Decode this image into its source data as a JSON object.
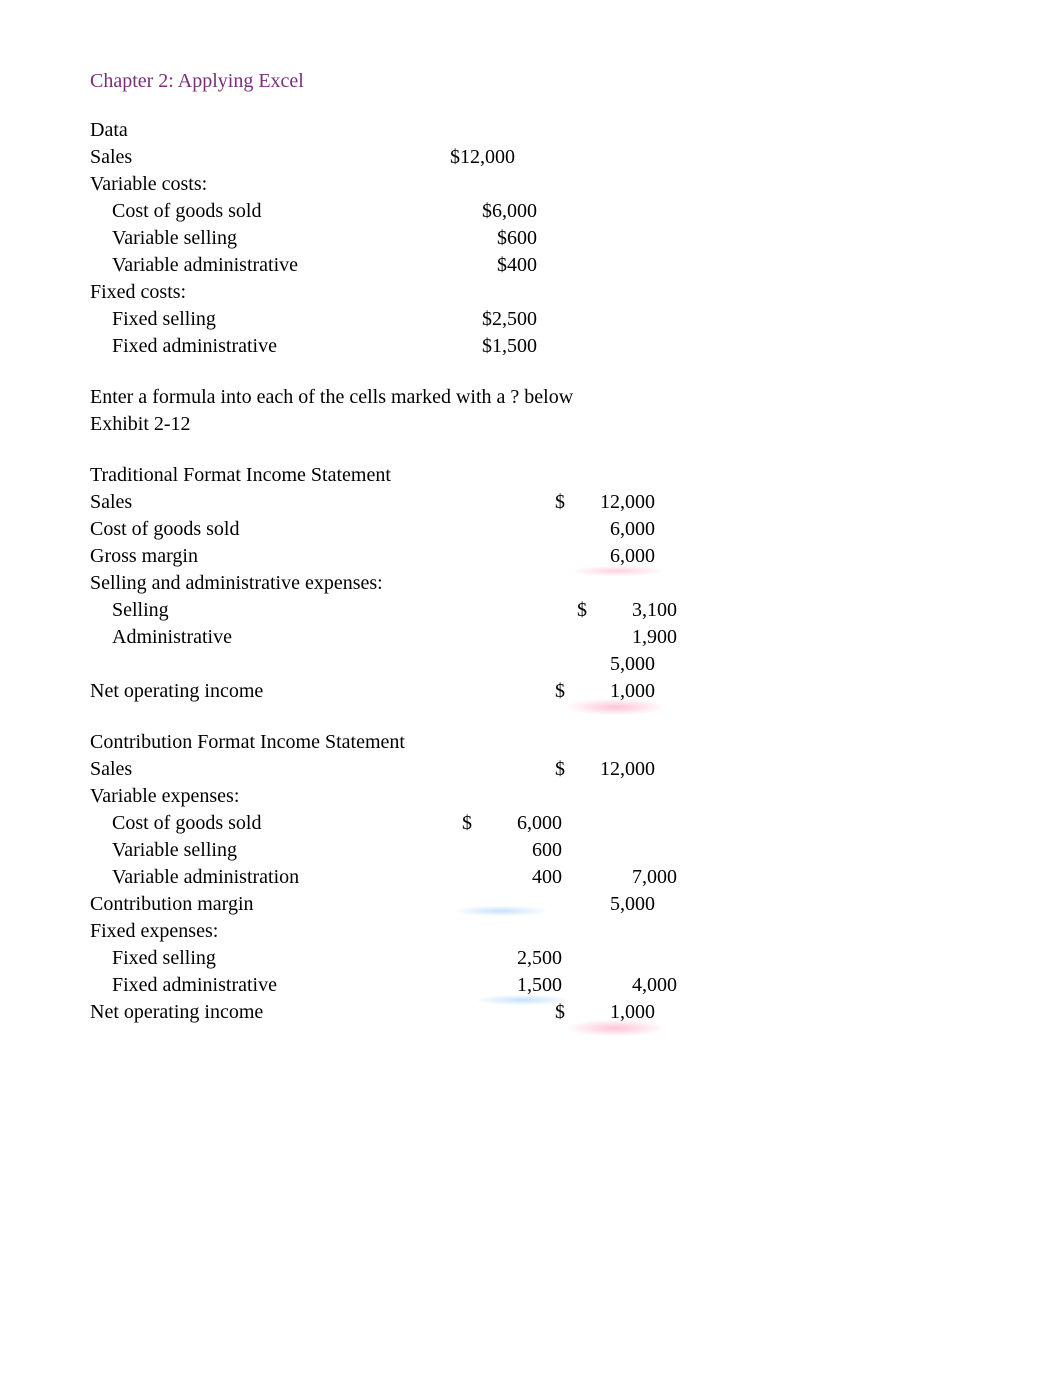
{
  "title": "Chapter 2: Applying Excel",
  "colors": {
    "title": "#7b2d7b",
    "text": "#000000",
    "background": "#ffffff",
    "blur_pink": "#ffaac8",
    "blur_blue": "#96c8ff"
  },
  "typography": {
    "family": "Times New Roman",
    "body_size_pt": 15,
    "title_size_pt": 15
  },
  "data_section": {
    "header": "Data",
    "rows": [
      {
        "label": "Sales",
        "value": "$12,000",
        "indent": 0
      },
      {
        "label": "Variable costs:",
        "value": "",
        "indent": 0
      },
      {
        "label": "Cost of goods sold",
        "value": "$6,000",
        "indent": 1
      },
      {
        "label": "Variable selling",
        "value": "$600",
        "indent": 1
      },
      {
        "label": "Variable administrative",
        "value": "$400",
        "indent": 1
      },
      {
        "label": "Fixed costs:",
        "value": "",
        "indent": 0
      },
      {
        "label": "Fixed selling",
        "value": "$2,500",
        "indent": 1
      },
      {
        "label": "Fixed administrative",
        "value": "$1,500",
        "indent": 1
      }
    ]
  },
  "instruction": {
    "line1": "Enter a formula into each of the cells marked with a ? below",
    "line2": "Exhibit 2-12"
  },
  "traditional": {
    "header": "Traditional Format Income Statement",
    "rows": [
      {
        "label": "Sales",
        "sym_b": "$",
        "val_b": "12,000"
      },
      {
        "label": "Cost of goods sold",
        "val_b": "6,000"
      },
      {
        "label": "Gross margin",
        "val_b": "6,000",
        "blur_b": "pink-a"
      },
      {
        "label": "Selling and administrative expenses:"
      },
      {
        "label": "Selling",
        "indent": 1,
        "sym_b": "$",
        "val_b": "3,100"
      },
      {
        "label": "Administrative",
        "indent": 1,
        "val_b": "1,900"
      },
      {
        "label": "",
        "val_b": "5,000"
      },
      {
        "label": "Net operating income",
        "sym_b": "$",
        "val_b": "1,000",
        "blur_b": "pink-b"
      }
    ]
  },
  "contribution": {
    "header": "Contribution Format Income Statement",
    "rows": [
      {
        "label": "Sales",
        "sym_b": "$",
        "val_b": "12,000"
      },
      {
        "label": "Variable expenses:"
      },
      {
        "label": "Cost of goods sold",
        "indent": 1,
        "sym_a": "$",
        "val_a": "6,000"
      },
      {
        "label": "Variable selling",
        "indent": 1,
        "val_a": "600"
      },
      {
        "label": "Variable administration",
        "indent": 1,
        "val_a": "400",
        "val_b": "7,000"
      },
      {
        "label": "Contribution margin",
        "val_b": "5,000",
        "blur_a": "blue"
      },
      {
        "label": "Fixed expenses:"
      },
      {
        "label": "Fixed selling",
        "indent": 1,
        "val_a": "2,500"
      },
      {
        "label": "Fixed administrative",
        "indent": 1,
        "val_a": "1,500",
        "val_b": "4,000",
        "blur_a": "blue"
      },
      {
        "label": "Net operating income",
        "sym_b": "$",
        "val_b": "1,000",
        "blur_b": "pink-b"
      }
    ]
  }
}
